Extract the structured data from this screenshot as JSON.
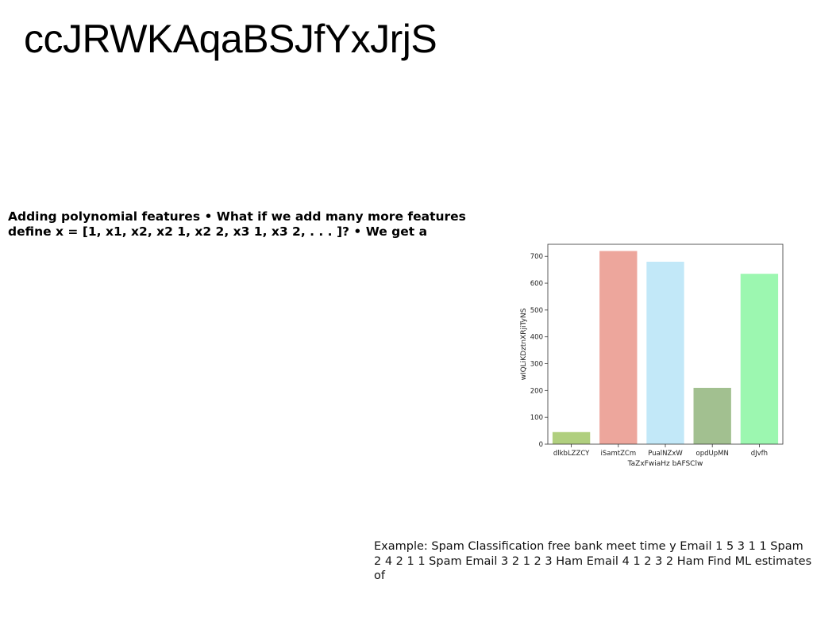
{
  "slide": {
    "title": "ccJRWKAqaBSJfYxJrjS",
    "body": "Adding polynomial features • What if we add many more features define x = [1, x1, x2, x2 1, x2 2, x3 1, x3 2, . . . ]? • We get a",
    "footer": "Example: Spam Classification free bank meet time y Email 1 5 3 1 1 Spam 2 4 2 1 1 Spam Email 3 2 1 2 3 Ham Email 4 1 2 3 2 Ham Find ML estimates of"
  },
  "chart_data": {
    "type": "bar",
    "categories": [
      "dlkbLZZCY",
      "iSamtZCm",
      "PualNZxW",
      "opdUpMN",
      "dJvfh"
    ],
    "values": [
      45,
      720,
      680,
      210,
      635
    ],
    "colors": [
      "#b0cf7e",
      "#eda69c",
      "#c2e8f8",
      "#a2c090",
      "#9cf7b0"
    ],
    "xlabel": "TaZxFwiaHz bAFSClw",
    "ylabel": "wIQLiKDztnXRjiTyNS",
    "ylim": [
      0,
      745
    ],
    "yticks": [
      0,
      100,
      200,
      300,
      400,
      500,
      600,
      700
    ],
    "grid": false
  }
}
